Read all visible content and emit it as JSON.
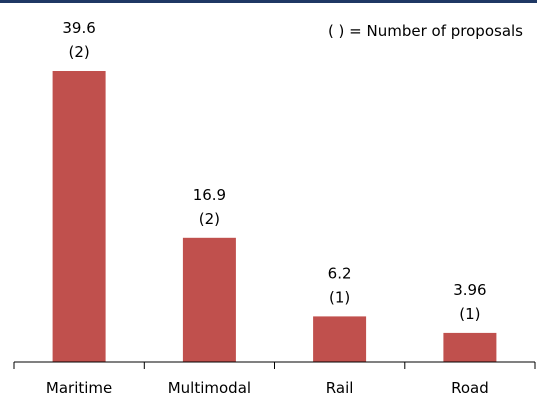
{
  "colors": {
    "bar": "#c0504d",
    "top_border": "#1f3864",
    "axis": "#000000"
  },
  "legend_note": "( ) = Number of proposals",
  "chart_data": {
    "type": "bar",
    "title": "",
    "xlabel": "",
    "ylabel": "",
    "categories": [
      "Maritime",
      "Multimodal",
      "Rail",
      "Road"
    ],
    "values": [
      39.6,
      16.9,
      6.2,
      3.96
    ],
    "value_labels": [
      "39.6",
      "16.9",
      "6.2",
      "3.96"
    ],
    "proposal_labels": [
      "(2)",
      "(2)",
      "(1)",
      "(1)"
    ],
    "ylim": [
      0,
      39.6
    ],
    "grid": false,
    "y_axis_visible": false
  }
}
